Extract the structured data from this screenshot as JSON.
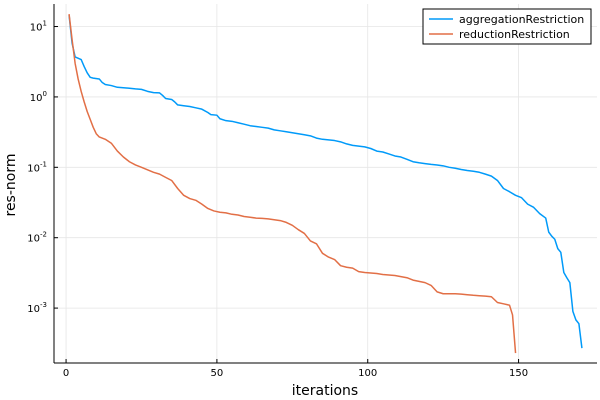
{
  "chart_data": {
    "type": "line",
    "xlabel": "iterations",
    "ylabel": "res-norm",
    "xlim": [
      -4,
      176
    ],
    "ylim_log10": [
      -3.78,
      1.32
    ],
    "y_scale": "log",
    "grid": true,
    "legend_position": "top-right",
    "x_ticks": [
      {
        "value": 0,
        "label": "0"
      },
      {
        "value": 50,
        "label": "50"
      },
      {
        "value": 100,
        "label": "100"
      },
      {
        "value": 150,
        "label": "150"
      }
    ],
    "y_ticks": [
      {
        "exp": 1,
        "base": "10",
        "sup": "1"
      },
      {
        "exp": 0,
        "base": "10",
        "sup": "0"
      },
      {
        "exp": -1,
        "base": "10",
        "sup": "-1"
      },
      {
        "exp": -2,
        "base": "10",
        "sup": "-2"
      },
      {
        "exp": -3,
        "base": "10",
        "sup": "-3"
      }
    ],
    "series": [
      {
        "name": "aggregationRestriction",
        "color": "#009AF9",
        "x": [
          1,
          2,
          3,
          5,
          6,
          7,
          8,
          9,
          11,
          12,
          13,
          15,
          17,
          19,
          21,
          23,
          25,
          27,
          29,
          31,
          32,
          33,
          35,
          36,
          37,
          39,
          41,
          43,
          45,
          47,
          48,
          50,
          51,
          53,
          55,
          57,
          59,
          61,
          63,
          65,
          67,
          69,
          71,
          73,
          75,
          77,
          79,
          81,
          83,
          85,
          87,
          89,
          91,
          93,
          95,
          97,
          99,
          101,
          103,
          105,
          107,
          109,
          111,
          113,
          115,
          117,
          119,
          121,
          123,
          125,
          127,
          129,
          131,
          133,
          135,
          137,
          139,
          141,
          143,
          145,
          147,
          149,
          151,
          153,
          155,
          157,
          159,
          160,
          161,
          162,
          163,
          164,
          165,
          166,
          167,
          168,
          169,
          170,
          171
        ],
        "y": [
          14.5,
          5.8,
          3.7,
          3.4,
          2.7,
          2.2,
          1.9,
          1.85,
          1.8,
          1.6,
          1.5,
          1.45,
          1.37,
          1.35,
          1.33,
          1.3,
          1.28,
          1.2,
          1.15,
          1.14,
          1.05,
          0.95,
          0.92,
          0.85,
          0.77,
          0.75,
          0.73,
          0.7,
          0.67,
          0.6,
          0.56,
          0.55,
          0.49,
          0.46,
          0.45,
          0.43,
          0.41,
          0.39,
          0.38,
          0.37,
          0.36,
          0.34,
          0.33,
          0.32,
          0.31,
          0.3,
          0.29,
          0.28,
          0.26,
          0.25,
          0.245,
          0.24,
          0.23,
          0.215,
          0.205,
          0.2,
          0.195,
          0.185,
          0.17,
          0.165,
          0.155,
          0.145,
          0.14,
          0.13,
          0.12,
          0.116,
          0.113,
          0.11,
          0.108,
          0.105,
          0.1,
          0.097,
          0.093,
          0.09,
          0.088,
          0.085,
          0.08,
          0.075,
          0.065,
          0.05,
          0.045,
          0.04,
          0.037,
          0.03,
          0.027,
          0.022,
          0.019,
          0.012,
          0.0105,
          0.0095,
          0.007,
          0.0062,
          0.0032,
          0.0027,
          0.0023,
          0.0009,
          0.00068,
          0.0006,
          0.00027
        ]
      },
      {
        "name": "reductionRestriction",
        "color": "#E26F46",
        "x": [
          1,
          2,
          3,
          4,
          5,
          6,
          7,
          8,
          9,
          10,
          11,
          13,
          15,
          17,
          19,
          21,
          23,
          25,
          27,
          29,
          31,
          33,
          35,
          37,
          39,
          41,
          43,
          45,
          47,
          49,
          51,
          53,
          55,
          57,
          59,
          61,
          63,
          65,
          67,
          69,
          71,
          73,
          75,
          77,
          79,
          81,
          83,
          85,
          87,
          89,
          91,
          93,
          95,
          97,
          99,
          101,
          103,
          105,
          107,
          109,
          111,
          113,
          115,
          117,
          119,
          121,
          123,
          125,
          127,
          129,
          131,
          133,
          135,
          137,
          139,
          141,
          143,
          145,
          147,
          148,
          149
        ],
        "y": [
          15,
          6.5,
          3.0,
          1.8,
          1.2,
          0.85,
          0.62,
          0.48,
          0.37,
          0.3,
          0.27,
          0.25,
          0.22,
          0.17,
          0.14,
          0.12,
          0.108,
          0.1,
          0.092,
          0.085,
          0.08,
          0.072,
          0.065,
          0.05,
          0.04,
          0.036,
          0.034,
          0.03,
          0.026,
          0.024,
          0.023,
          0.0225,
          0.0215,
          0.021,
          0.02,
          0.0195,
          0.019,
          0.0188,
          0.0185,
          0.018,
          0.0175,
          0.0165,
          0.015,
          0.013,
          0.0115,
          0.009,
          0.0082,
          0.006,
          0.0053,
          0.0049,
          0.004,
          0.0038,
          0.0037,
          0.0033,
          0.0032,
          0.00315,
          0.0031,
          0.003,
          0.00295,
          0.0029,
          0.0028,
          0.0027,
          0.0025,
          0.0024,
          0.0023,
          0.0021,
          0.0017,
          0.0016,
          0.0016,
          0.0016,
          0.00158,
          0.00155,
          0.00152,
          0.0015,
          0.00148,
          0.00145,
          0.0012,
          0.00115,
          0.0011,
          0.0008,
          0.00023
        ]
      }
    ]
  }
}
